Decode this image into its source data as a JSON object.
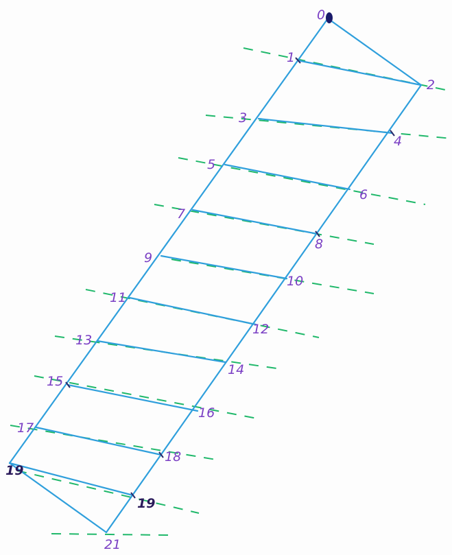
{
  "diagram": {
    "description_labels": [
      "0",
      "1",
      "2",
      "3",
      "4",
      "5",
      "6",
      "7",
      "8",
      "9",
      "10",
      "11",
      "12",
      "13",
      "14",
      "15",
      "16",
      "17",
      "18",
      "19",
      "19",
      "21"
    ],
    "colors": {
      "strip": "#2f9fdc",
      "dashed": "#1fb86a",
      "labels": "#7a3fc4",
      "apex": "#1a1a6a"
    }
  }
}
